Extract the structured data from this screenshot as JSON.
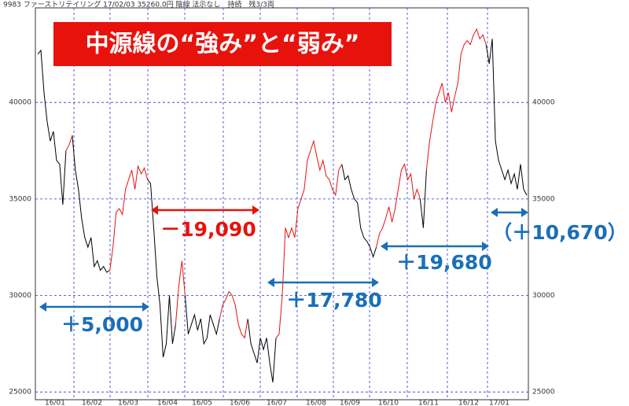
{
  "header": "9983 ファーストリテイリング 17/02/03 35260.0円 陰線 法示なし　持続　残3/3両",
  "chart_data": {
    "type": "line",
    "title": "中源線の“強み”と“弱み”",
    "title_color": "#e8120c",
    "months": [
      "16/01",
      "16/02",
      "16/03",
      "16/04",
      "16/05",
      "16/06",
      "16/07",
      "16/08",
      "16/09",
      "16/10",
      "16/11",
      "16/12",
      "17/01"
    ],
    "ylim": [
      24600,
      44900
    ],
    "yticks": [
      25000,
      30000,
      35000,
      40000
    ],
    "grid": true,
    "grid_color": "#3333cc",
    "series": [
      {
        "color": "#000000",
        "values": [
          42500,
          42700,
          40500,
          39000,
          38000,
          38500,
          37000,
          36800,
          34700,
          37500,
          null,
          38300,
          36500,
          35500,
          34000,
          33000,
          32500,
          33000,
          31500,
          31800,
          31300,
          31500,
          31200,
          31300,
          null,
          null,
          null,
          null,
          null,
          null,
          null,
          null,
          null,
          null,
          null,
          36000,
          35800,
          33500,
          31000,
          29500,
          26800,
          27500,
          30000,
          27500,
          28500,
          null,
          null,
          30000,
          28000,
          28500,
          29000,
          28200,
          28800,
          27500,
          27800,
          29000,
          28500,
          28000,
          28800,
          null,
          null,
          null,
          null,
          null,
          null,
          null,
          null,
          28800,
          27500,
          27000,
          26500,
          27800,
          27200,
          27800,
          26500,
          25500,
          27800,
          null,
          null,
          null,
          null,
          null,
          null,
          null,
          null,
          null,
          null,
          null,
          null,
          null,
          null,
          null,
          null,
          null,
          null,
          null,
          null,
          36800,
          36000,
          36200,
          35500,
          35000,
          34800,
          33500,
          33000,
          32800,
          32500,
          32000,
          32500,
          null,
          null,
          null,
          null,
          null,
          null,
          null,
          null,
          null,
          null,
          null,
          null,
          null,
          35000,
          33500,
          36500,
          null,
          null,
          null,
          null,
          null,
          null,
          null,
          null,
          null,
          null,
          null,
          null,
          null,
          null,
          null,
          null,
          null,
          null,
          43000,
          42000,
          43300,
          38000,
          37000,
          36500,
          36000,
          36500,
          35800,
          36300,
          35500,
          36800,
          35500,
          35200
        ]
      },
      {
        "color": "#e8120c",
        "values": [
          null,
          null,
          null,
          null,
          null,
          null,
          null,
          null,
          null,
          37500,
          37800,
          38300,
          null,
          null,
          null,
          null,
          null,
          null,
          null,
          null,
          null,
          null,
          null,
          31300,
          32500,
          34300,
          34500,
          34200,
          35500,
          36000,
          36500,
          35500,
          36700,
          36300,
          36600,
          36000,
          null,
          null,
          null,
          null,
          null,
          null,
          null,
          null,
          28500,
          30500,
          31800,
          30000,
          null,
          null,
          null,
          null,
          null,
          null,
          null,
          null,
          null,
          null,
          28800,
          29500,
          29800,
          30200,
          30000,
          29500,
          28500,
          28000,
          27800,
          28800,
          null,
          null,
          null,
          null,
          null,
          null,
          null,
          null,
          27800,
          28000,
          30000,
          33500,
          33000,
          33500,
          33000,
          34500,
          35000,
          35500,
          37000,
          37500,
          38000,
          37200,
          36500,
          37000,
          36200,
          36000,
          35500,
          35200,
          36500,
          36800,
          null,
          null,
          null,
          null,
          null,
          null,
          null,
          null,
          null,
          null,
          32500,
          33200,
          33500,
          34000,
          34600,
          33800,
          34500,
          35500,
          36500,
          36800,
          36000,
          36300,
          35000,
          35500,
          35000,
          null,
          36500,
          38000,
          39000,
          40000,
          40500,
          41000,
          40000,
          40500,
          39500,
          40300,
          41000,
          42500,
          43000,
          43200,
          43000,
          43500,
          43800,
          43300,
          43500,
          43000,
          null,
          null,
          null,
          null,
          null,
          null,
          null,
          null,
          null,
          null,
          null,
          null,
          null
        ]
      }
    ],
    "annotations": [
      {
        "text": "－19,090",
        "color": "#e8120c"
      },
      {
        "text": "＋5,000",
        "color": "#1a6fb8"
      },
      {
        "text": "＋17,780",
        "color": "#1a6fb8"
      },
      {
        "text": "＋19,680",
        "color": "#1a6fb8"
      },
      {
        "text": "（＋10,670）",
        "color": "#1a6fb8"
      }
    ]
  }
}
